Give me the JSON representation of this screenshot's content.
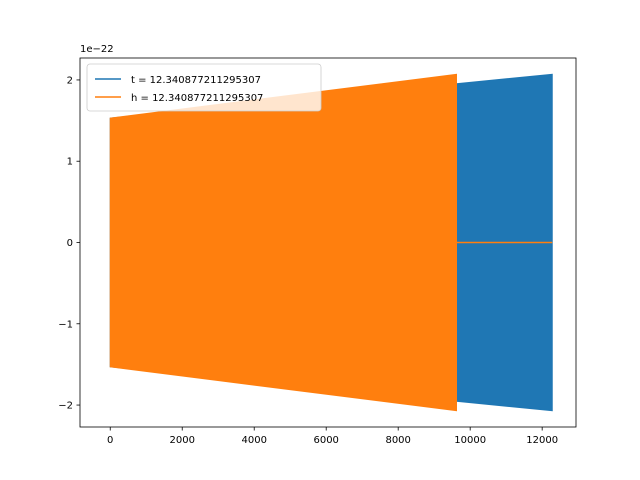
{
  "chart_data": {
    "type": "line",
    "title": "",
    "xlabel": "",
    "ylabel": "",
    "y_offset_label": "1e−22",
    "xlim": [
      -840,
      12940
    ],
    "ylim": [
      -2.27,
      2.27
    ],
    "x_ticks": [
      0,
      2000,
      4000,
      6000,
      8000,
      10000,
      12000
    ],
    "x_tick_labels": [
      "0",
      "2000",
      "4000",
      "6000",
      "8000",
      "10000",
      "12000"
    ],
    "y_ticks": [
      -2,
      -1,
      0,
      1,
      2
    ],
    "y_tick_labels": [
      "−2",
      "−1",
      "0",
      "1",
      "2"
    ],
    "grid": false,
    "legend_position": "upper-left",
    "series": [
      {
        "name": "t = 12.340877211295307",
        "color": "#1f77b4",
        "x_range": [
          0,
          12280
        ],
        "envelope_start": 1.53,
        "envelope_end": 2.07,
        "segments": [
          {
            "x_start": 0,
            "x_end": 12280,
            "amp_start": 1.53,
            "amp_end": 2.07
          }
        ]
      },
      {
        "name": "h = 12.340877211295307",
        "color": "#ff7f0e",
        "x_range": [
          0,
          12280
        ],
        "envelope_start": 1.53,
        "envelope_end": 2.07,
        "segments": [
          {
            "x_start": 0,
            "x_end": 9620,
            "amp_start": 1.53,
            "amp_end": 2.07
          },
          {
            "x_start": 9620,
            "x_end": 12280,
            "amp_start": 0,
            "amp_end": 0
          }
        ]
      }
    ]
  }
}
